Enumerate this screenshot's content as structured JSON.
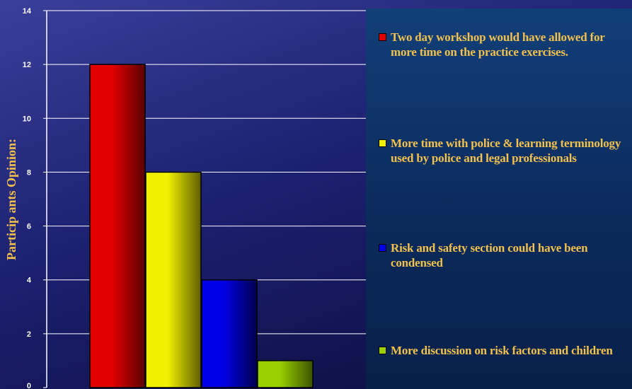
{
  "chart_data": {
    "type": "bar",
    "title": "",
    "xlabel": "",
    "ylabel": "Particip ants Opinion:",
    "ylim": [
      0,
      14
    ],
    "y_ticks": [
      "0",
      "2",
      "4",
      "6",
      "8",
      "10",
      "12",
      "14"
    ],
    "grid": true,
    "legend_placement": "right",
    "categories": [
      "Two day workshop would have allowed for more time on the practice exercises.",
      "More time with police & learning terminology used by police and legal professionals",
      "Risk and safety section could have been condensed",
      "More discussion on risk factors and children"
    ],
    "values": [
      12,
      8,
      4,
      1
    ],
    "colors": [
      "#e00000",
      "#f0f000",
      "#0000e6",
      "#9ad000"
    ],
    "colors_dark": [
      "#5a0000",
      "#5e5e00",
      "#00004e",
      "#3a5400"
    ]
  }
}
